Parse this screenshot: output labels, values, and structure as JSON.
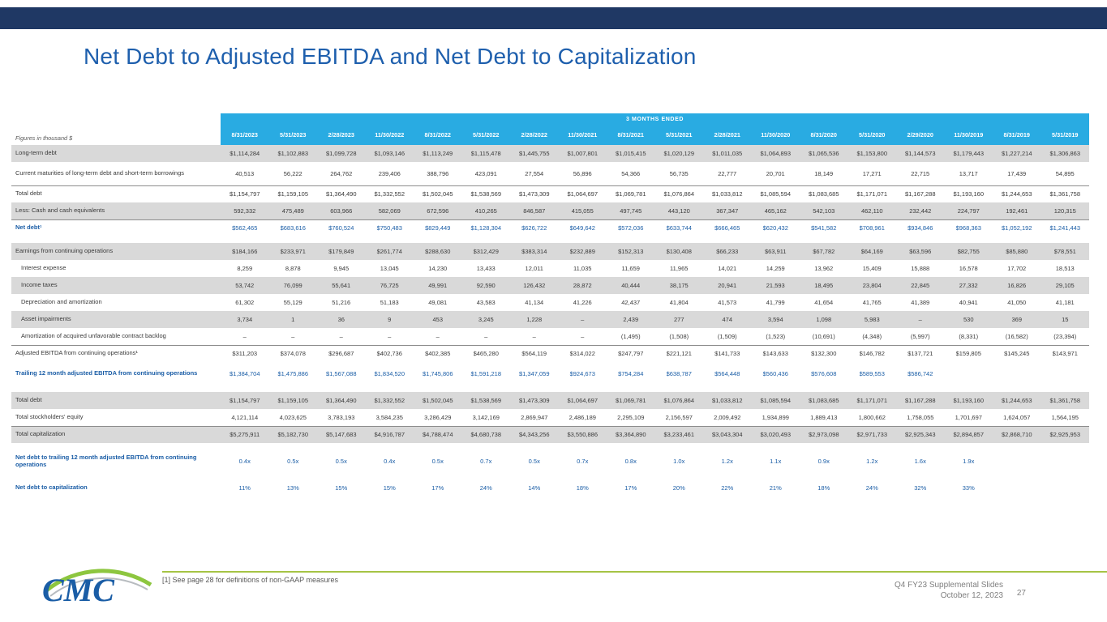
{
  "slide": {
    "title": "Net Debt to Adjusted EBITDA and Net Debt to Capitalization",
    "footnote": "[1] See page 28 for definitions of non-GAAP measures",
    "footer": {
      "deck": "Q4 FY23 Supplemental Slides",
      "date": "October 12, 2023",
      "page": "27"
    },
    "logo_text": "CMC",
    "colors": {
      "top_bar_navy": "#1F3864",
      "title_blue": "#1E5FAD",
      "header_cyan": "#29ABE2",
      "row_stripe_gray": "#D9D9D9",
      "highlight_blue_text": "#1A5DA6",
      "footer_green_line": "#A6C445",
      "logo_green": "#8DC63F"
    }
  },
  "table": {
    "figures_label": "Figures in thousand $",
    "months_header": "3 MONTHS ENDED",
    "columns": [
      "8/31/2023",
      "5/31/2023",
      "2/28/2023",
      "11/30/2022",
      "8/31/2022",
      "5/31/2022",
      "2/28/2022",
      "11/30/2021",
      "8/31/2021",
      "5/31/2021",
      "2/28/2021",
      "11/30/2020",
      "8/31/2020",
      "5/31/2020",
      "2/29/2020",
      "11/30/2019",
      "8/31/2019",
      "5/31/2019"
    ],
    "rows": [
      {
        "label": "Long-term debt",
        "shade": "gray",
        "values": [
          "$1,114,284",
          "$1,102,883",
          "$1,099,728",
          "$1,093,146",
          "$1,113,249",
          "$1,115,478",
          "$1,445,755",
          "$1,007,801",
          "$1,015,415",
          "$1,020,129",
          "$1,011,035",
          "$1,064,893",
          "$1,065,536",
          "$1,153,800",
          "$1,144,573",
          "$1,179,443",
          "$1,227,214",
          "$1,306,863"
        ]
      },
      {
        "label": "Current maturities of long-term debt and short-term borrowings",
        "shade": "white",
        "tall": true,
        "values": [
          "40,513",
          "56,222",
          "264,762",
          "239,406",
          "388,796",
          "423,091",
          "27,554",
          "56,896",
          "54,366",
          "56,735",
          "22,777",
          "20,701",
          "18,149",
          "17,271",
          "22,715",
          "13,717",
          "17,439",
          "54,895"
        ]
      },
      {
        "label": "Total debt",
        "shade": "white",
        "border_top": true,
        "values": [
          "$1,154,797",
          "$1,159,105",
          "$1,364,490",
          "$1,332,552",
          "$1,502,045",
          "$1,538,569",
          "$1,473,309",
          "$1,064,697",
          "$1,069,781",
          "$1,076,864",
          "$1,033,812",
          "$1,085,594",
          "$1,083,685",
          "$1,171,071",
          "$1,167,288",
          "$1,193,160",
          "$1,244,653",
          "$1,361,758"
        ]
      },
      {
        "label": "Less: Cash and cash equivalents",
        "shade": "gray",
        "values": [
          "592,332",
          "475,489",
          "603,966",
          "582,069",
          "672,596",
          "410,265",
          "846,587",
          "415,055",
          "497,745",
          "443,120",
          "367,347",
          "465,162",
          "542,103",
          "462,110",
          "232,442",
          "224,797",
          "192,461",
          "120,315"
        ]
      },
      {
        "label": "Net debt¹",
        "shade": "white",
        "blue": true,
        "border_top": true,
        "values": [
          "$562,465",
          "$683,616",
          "$760,524",
          "$750,483",
          "$829,449",
          "$1,128,304",
          "$626,722",
          "$649,642",
          "$572,036",
          "$633,744",
          "$666,465",
          "$620,432",
          "$541,582",
          "$708,961",
          "$934,846",
          "$968,363",
          "$1,052,192",
          "$1,241,443"
        ]
      },
      {
        "label": "Earnings from continuing operations",
        "shade": "gray",
        "gap_before": true,
        "values": [
          "$184,166",
          "$233,971",
          "$179,849",
          "$261,774",
          "$288,630",
          "$312,429",
          "$383,314",
          "$232,889",
          "$152,313",
          "$130,408",
          "$66,233",
          "$63,911",
          "$67,782",
          "$64,169",
          "$63,596",
          "$82,755",
          "$85,880",
          "$78,551"
        ]
      },
      {
        "label": "Interest expense",
        "shade": "white",
        "indent": true,
        "values": [
          "8,259",
          "8,878",
          "9,945",
          "13,045",
          "14,230",
          "13,433",
          "12,011",
          "11,035",
          "11,659",
          "11,965",
          "14,021",
          "14,259",
          "13,962",
          "15,409",
          "15,888",
          "16,578",
          "17,702",
          "18,513"
        ]
      },
      {
        "label": "Income taxes",
        "shade": "gray",
        "indent": true,
        "values": [
          "53,742",
          "76,099",
          "55,641",
          "76,725",
          "49,991",
          "92,590",
          "126,432",
          "28,872",
          "40,444",
          "38,175",
          "20,941",
          "21,593",
          "18,495",
          "23,804",
          "22,845",
          "27,332",
          "16,826",
          "29,105"
        ]
      },
      {
        "label": "Depreciation and amortization",
        "shade": "white",
        "indent": true,
        "values": [
          "61,302",
          "55,129",
          "51,216",
          "51,183",
          "49,081",
          "43,583",
          "41,134",
          "41,226",
          "42,437",
          "41,804",
          "41,573",
          "41,799",
          "41,654",
          "41,765",
          "41,389",
          "40,941",
          "41,050",
          "41,181"
        ]
      },
      {
        "label": "Asset impairments",
        "shade": "gray",
        "indent": true,
        "values": [
          "3,734",
          "1",
          "36",
          "9",
          "453",
          "3,245",
          "1,228",
          "–",
          "2,439",
          "277",
          "474",
          "3,594",
          "1,098",
          "5,983",
          "–",
          "530",
          "369",
          "15"
        ]
      },
      {
        "label": "Amortization of acquired unfavorable contract backlog",
        "shade": "white",
        "indent": true,
        "values": [
          "–",
          "–",
          "–",
          "–",
          "–",
          "–",
          "–",
          "–",
          "(1,495)",
          "(1,508)",
          "(1,509)",
          "(1,523)",
          "(10,691)",
          "(4,348)",
          "(5,997)",
          "(8,331)",
          "(16,582)",
          "(23,394)"
        ]
      },
      {
        "label": "Adjusted EBITDA from continuing operations¹",
        "shade": "white",
        "border_top": true,
        "values": [
          "$311,203",
          "$374,078",
          "$296,687",
          "$402,736",
          "$402,385",
          "$465,280",
          "$564,119",
          "$314,022",
          "$247,797",
          "$221,121",
          "$141,733",
          "$143,633",
          "$132,300",
          "$146,782",
          "$137,721",
          "$159,805",
          "$145,245",
          "$143,971"
        ]
      },
      {
        "label": "Trailing 12 month adjusted EBITDA from continuing operations",
        "shade": "white",
        "blue": true,
        "tall": true,
        "values": [
          "$1,384,704",
          "$1,475,886",
          "$1,567,088",
          "$1,834,520",
          "$1,745,806",
          "$1,591,218",
          "$1,347,059",
          "$924,673",
          "$754,284",
          "$638,787",
          "$564,448",
          "$560,436",
          "$576,608",
          "$589,553",
          "$586,742",
          "",
          "",
          ""
        ]
      },
      {
        "label": "Total debt",
        "shade": "gray",
        "gap_before": true,
        "values": [
          "$1,154,797",
          "$1,159,105",
          "$1,364,490",
          "$1,332,552",
          "$1,502,045",
          "$1,538,569",
          "$1,473,309",
          "$1,064,697",
          "$1,069,781",
          "$1,076,864",
          "$1,033,812",
          "$1,085,594",
          "$1,083,685",
          "$1,171,071",
          "$1,167,288",
          "$1,193,160",
          "$1,244,653",
          "$1,361,758"
        ]
      },
      {
        "label": "Total stockholders' equity",
        "shade": "white",
        "values": [
          "4,121,114",
          "4,023,625",
          "3,783,193",
          "3,584,235",
          "3,286,429",
          "3,142,169",
          "2,869,947",
          "2,486,189",
          "2,295,109",
          "2,156,597",
          "2,009,492",
          "1,934,899",
          "1,889,413",
          "1,800,662",
          "1,758,055",
          "1,701,697",
          "1,624,057",
          "1,564,195"
        ]
      },
      {
        "label": "Total capitalization",
        "shade": "gray",
        "border_top": true,
        "values": [
          "$5,275,911",
          "$5,182,730",
          "$5,147,683",
          "$4,916,787",
          "$4,788,474",
          "$4,680,738",
          "$4,343,256",
          "$3,550,886",
          "$3,364,890",
          "$3,233,461",
          "$3,043,304",
          "$3,020,493",
          "$2,973,098",
          "$2,971,733",
          "$2,925,343",
          "$2,894,857",
          "$2,868,710",
          "$2,925,953"
        ]
      },
      {
        "label": "Net debt to trailing 12 month adjusted EBITDA from continuing operations",
        "shade": "white",
        "blue": true,
        "gap_before": true,
        "tall": true,
        "values": [
          "0.4x",
          "0.5x",
          "0.5x",
          "0.4x",
          "0.5x",
          "0.7x",
          "0.5x",
          "0.7x",
          "0.8x",
          "1.0x",
          "1.2x",
          "1.1x",
          "0.9x",
          "1.2x",
          "1.6x",
          "1.9x",
          "",
          ""
        ]
      },
      {
        "label": "Net debt to capitalization",
        "shade": "white",
        "blue": true,
        "gap_before": true,
        "values": [
          "11%",
          "13%",
          "15%",
          "15%",
          "17%",
          "24%",
          "14%",
          "18%",
          "17%",
          "20%",
          "22%",
          "21%",
          "18%",
          "24%",
          "32%",
          "33%",
          "",
          ""
        ]
      }
    ]
  }
}
